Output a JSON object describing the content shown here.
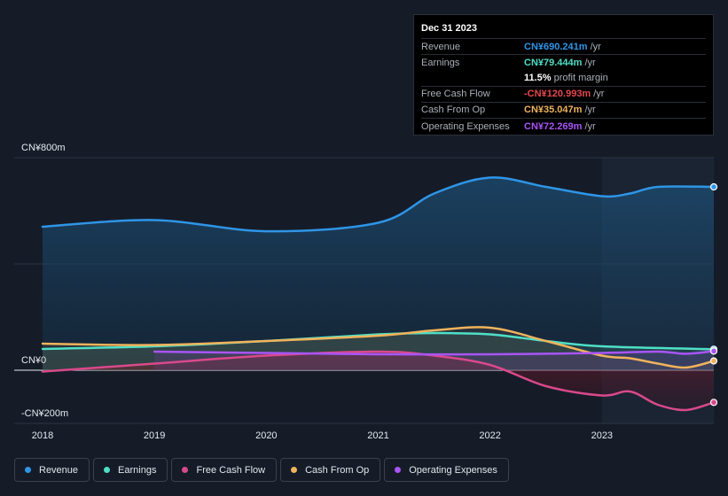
{
  "chart_data": {
    "type": "line",
    "title": "",
    "y_axis": {
      "top_label": "CN¥800m",
      "zero_label": "CN¥0",
      "bottom_label": "-CN¥200m",
      "ylim": [
        -200,
        800
      ]
    },
    "x_ticks": [
      "2018",
      "2019",
      "2020",
      "2021",
      "2022",
      "2023"
    ],
    "xlim": [
      2018.0,
      2024.0
    ],
    "series": [
      {
        "name": "Revenue",
        "color": "#2f95e6",
        "points": [
          [
            2018.0,
            540
          ],
          [
            2019.0,
            565
          ],
          [
            2020.0,
            523
          ],
          [
            2021.0,
            555
          ],
          [
            2021.5,
            665
          ],
          [
            2022.0,
            725
          ],
          [
            2022.5,
            690
          ],
          [
            2023.0,
            655
          ],
          [
            2023.25,
            665
          ],
          [
            2023.5,
            690
          ],
          [
            2024.0,
            690
          ]
        ]
      },
      {
        "name": "Earnings",
        "color": "#4fdfc6",
        "points": [
          [
            2018.0,
            80
          ],
          [
            2019.0,
            90
          ],
          [
            2020.0,
            110
          ],
          [
            2021.0,
            135
          ],
          [
            2021.5,
            140
          ],
          [
            2022.0,
            135
          ],
          [
            2022.5,
            110
          ],
          [
            2023.0,
            90
          ],
          [
            2024.0,
            79
          ]
        ]
      },
      {
        "name": "Free Cash Flow",
        "color": "#d9498b",
        "points": [
          [
            2018.0,
            -5
          ],
          [
            2019.0,
            25
          ],
          [
            2020.0,
            55
          ],
          [
            2021.0,
            70
          ],
          [
            2021.5,
            55
          ],
          [
            2022.0,
            20
          ],
          [
            2022.5,
            -60
          ],
          [
            2023.0,
            -95
          ],
          [
            2023.25,
            -80
          ],
          [
            2023.5,
            -130
          ],
          [
            2023.75,
            -150
          ],
          [
            2024.0,
            -121
          ]
        ]
      },
      {
        "name": "Cash From Op",
        "color": "#f0b35c",
        "points": [
          [
            2018.0,
            100
          ],
          [
            2019.0,
            95
          ],
          [
            2020.0,
            110
          ],
          [
            2021.0,
            130
          ],
          [
            2021.5,
            150
          ],
          [
            2022.0,
            160
          ],
          [
            2022.5,
            110
          ],
          [
            2023.0,
            55
          ],
          [
            2023.25,
            45
          ],
          [
            2023.5,
            25
          ],
          [
            2023.75,
            10
          ],
          [
            2024.0,
            35
          ]
        ]
      },
      {
        "name": "Operating Expenses",
        "color": "#a855f7",
        "points": [
          [
            2019.0,
            70
          ],
          [
            2020.0,
            65
          ],
          [
            2021.0,
            60
          ],
          [
            2022.0,
            60
          ],
          [
            2023.0,
            65
          ],
          [
            2023.5,
            70
          ],
          [
            2023.75,
            62
          ],
          [
            2024.0,
            72
          ]
        ]
      }
    ],
    "highlight_region": {
      "from": 2023.0,
      "to": 2024.0
    }
  },
  "tooltip": {
    "date": "Dec 31 2023",
    "rows": [
      {
        "label": "Revenue",
        "value": "CN¥690.241m",
        "unit": "/yr",
        "color": "#2f95e6"
      },
      {
        "label": "Earnings",
        "value": "CN¥79.444m",
        "unit": "/yr",
        "color": "#4fdfc6"
      },
      {
        "label": "",
        "value": "11.5%",
        "unit": "profit margin",
        "color": "#ffffff"
      },
      {
        "label": "Free Cash Flow",
        "value": "-CN¥120.993m",
        "unit": "/yr",
        "color": "#e5484d"
      },
      {
        "label": "Cash From Op",
        "value": "CN¥35.047m",
        "unit": "/yr",
        "color": "#f0b35c"
      },
      {
        "label": "Operating Expenses",
        "value": "CN¥72.269m",
        "unit": "/yr",
        "color": "#a855f7"
      }
    ]
  },
  "legend": [
    {
      "label": "Revenue",
      "color": "#2f95e6"
    },
    {
      "label": "Earnings",
      "color": "#4fdfc6"
    },
    {
      "label": "Free Cash Flow",
      "color": "#d9498b"
    },
    {
      "label": "Cash From Op",
      "color": "#f0b35c"
    },
    {
      "label": "Operating Expenses",
      "color": "#a855f7"
    }
  ]
}
